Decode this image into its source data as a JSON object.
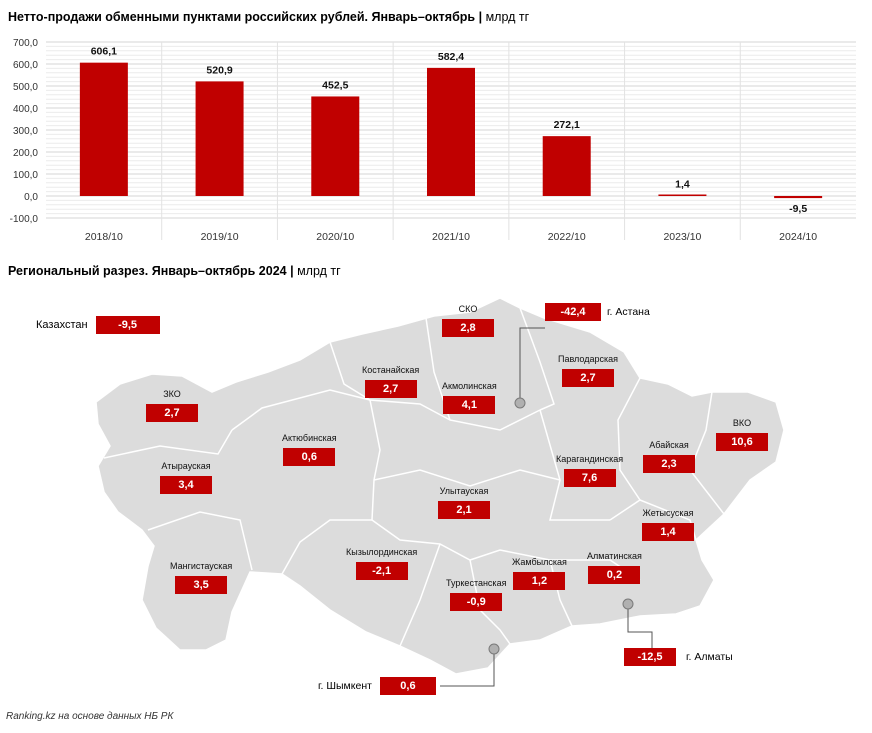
{
  "chart_title": "Нетто-продажи обменными пунктами российских рублей. Январь–октябрь",
  "chart_unit": "млрд тг",
  "chart_data": {
    "type": "bar",
    "categories": [
      "2018/10",
      "2019/10",
      "2020/10",
      "2021/10",
      "2022/10",
      "2023/10",
      "2024/10"
    ],
    "values": [
      606.1,
      520.9,
      452.5,
      582.4,
      272.1,
      1.4,
      -9.5
    ],
    "value_labels": [
      "606,1",
      "520,9",
      "452,5",
      "582,4",
      "272,1",
      "1,4",
      "-9,5"
    ],
    "yticks": [
      700,
      600,
      500,
      400,
      300,
      200,
      100,
      0,
      -100
    ],
    "ytick_labels": [
      "700,0",
      "600,0",
      "500,0",
      "400,0",
      "300,0",
      "200,0",
      "100,0",
      "0,0",
      "-100,0"
    ],
    "ylim": [
      -100,
      700
    ],
    "grid": true,
    "bar_color": "#c00000"
  },
  "map_title": "Региональный разрез. Январь–октябрь 2024",
  "map_unit": "млрд тг",
  "kazakhstan": {
    "label": "Казахстан",
    "value": "-9,5"
  },
  "regions": [
    {
      "name": "СКО",
      "value": "2,8"
    },
    {
      "name": "Павлодарская",
      "value": "2,7"
    },
    {
      "name": "Костанайская",
      "value": "2,7"
    },
    {
      "name": "Акмолинская",
      "value": "4,1"
    },
    {
      "name": "ЗКО",
      "value": "2,7"
    },
    {
      "name": "Актюбинская",
      "value": "0,6"
    },
    {
      "name": "ВКО",
      "value": "10,6"
    },
    {
      "name": "Абайская",
      "value": "2,3"
    },
    {
      "name": "Карагандинская",
      "value": "7,6"
    },
    {
      "name": "Атырауская",
      "value": "3,4"
    },
    {
      "name": "Улытауская",
      "value": "2,1"
    },
    {
      "name": "Жетысуская",
      "value": "1,4"
    },
    {
      "name": "Мангистауская",
      "value": "3,5"
    },
    {
      "name": "Кызылординская",
      "value": "-2,1"
    },
    {
      "name": "Жамбылская",
      "value": "1,2"
    },
    {
      "name": "Алматинская",
      "value": "0,2"
    },
    {
      "name": "Туркестанская",
      "value": "-0,9"
    }
  ],
  "cities": [
    {
      "name": "г. Астана",
      "value": "-42,4"
    },
    {
      "name": "г. Алматы",
      "value": "-12,5"
    },
    {
      "name": "г. Шымкент",
      "value": "0,6"
    }
  ],
  "source": "Ranking.kz на основе данных НБ РК"
}
